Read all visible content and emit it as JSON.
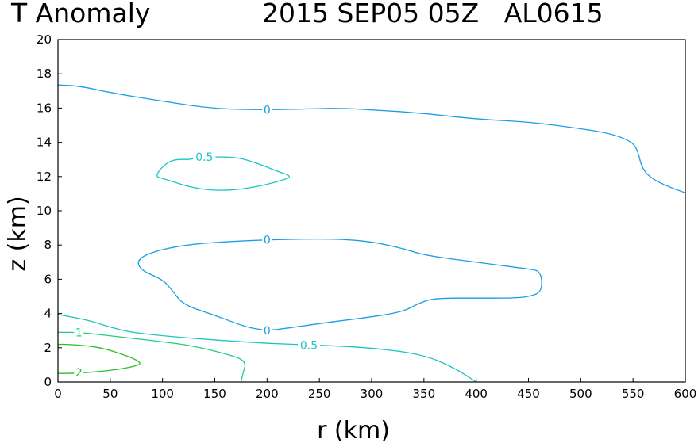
{
  "chart_data": {
    "type": "contour",
    "title_left": "T Anomaly",
    "title_right": "2015 SEP05 05Z   AL0615",
    "xlabel": "r (km)",
    "ylabel": "z (km)",
    "xlim": [
      0,
      600
    ],
    "ylim": [
      0,
      20
    ],
    "xticks": [
      "0",
      "50",
      "100",
      "150",
      "200",
      "250",
      "300",
      "350",
      "400",
      "450",
      "500",
      "550",
      "600"
    ],
    "yticks": [
      "0",
      "2",
      "4",
      "6",
      "8",
      "10",
      "12",
      "14",
      "16",
      "18",
      "20"
    ],
    "grid": false,
    "contours": [
      {
        "level": "0",
        "color": "#1a9ee6",
        "points": [
          [
            0,
            17.35
          ],
          [
            20,
            17.3
          ],
          [
            50,
            16.9
          ],
          [
            100,
            16.4
          ],
          [
            150,
            15.95
          ],
          [
            200,
            15.9
          ],
          [
            240,
            15.95
          ],
          [
            270,
            16.0
          ],
          [
            300,
            15.9
          ],
          [
            350,
            15.7
          ],
          [
            400,
            15.35
          ],
          [
            450,
            15.2
          ],
          [
            500,
            14.8
          ],
          [
            530,
            14.5
          ],
          [
            550,
            14.0
          ],
          [
            555,
            13.4
          ],
          [
            558,
            12.6
          ],
          [
            565,
            12.0
          ],
          [
            580,
            11.5
          ],
          [
            600,
            11.05
          ]
        ],
        "labels": [
          {
            "x": 200,
            "y": 15.9
          }
        ]
      },
      {
        "level": "0",
        "color": "#1a9ee6",
        "points": [
          [
            200,
            8.3
          ],
          [
            230,
            8.35
          ],
          [
            270,
            8.35
          ],
          [
            300,
            8.2
          ],
          [
            330,
            7.8
          ],
          [
            350,
            7.4
          ],
          [
            400,
            7.0
          ],
          [
            450,
            6.6
          ],
          [
            460,
            6.5
          ],
          [
            463,
            6.0
          ],
          [
            462,
            5.3
          ],
          [
            455,
            5.05
          ],
          [
            440,
            4.9
          ],
          [
            400,
            4.9
          ],
          [
            360,
            4.9
          ],
          [
            345,
            4.6
          ],
          [
            330,
            4.1
          ],
          [
            300,
            3.8
          ],
          [
            260,
            3.5
          ],
          [
            220,
            3.15
          ],
          [
            200,
            3.0
          ],
          [
            180,
            3.2
          ],
          [
            150,
            3.9
          ],
          [
            120,
            4.5
          ],
          [
            110,
            5.3
          ],
          [
            100,
            6.0
          ],
          [
            80,
            6.5
          ],
          [
            75,
            7.1
          ],
          [
            90,
            7.6
          ],
          [
            120,
            8.0
          ],
          [
            160,
            8.2
          ],
          [
            200,
            8.3
          ]
        ],
        "labels": [
          {
            "x": 200,
            "y": 8.3
          },
          {
            "x": 200,
            "y": 3.0
          }
        ]
      },
      {
        "level": "0.5",
        "color": "#1cc4c4",
        "points": [
          [
            125,
            13.0
          ],
          [
            140,
            13.15
          ],
          [
            170,
            13.15
          ],
          [
            190,
            12.8
          ],
          [
            210,
            12.3
          ],
          [
            225,
            12.0
          ],
          [
            210,
            11.7
          ],
          [
            190,
            11.4
          ],
          [
            160,
            11.15
          ],
          [
            130,
            11.3
          ],
          [
            100,
            11.9
          ],
          [
            93,
            12.0
          ],
          [
            100,
            12.6
          ],
          [
            110,
            13.0
          ],
          [
            125,
            13.0
          ]
        ],
        "labels": [
          {
            "x": 140,
            "y": 13.15
          }
        ]
      },
      {
        "level": "0.5",
        "color": "#1cc4c4",
        "points": [
          [
            0,
            3.95
          ],
          [
            30,
            3.6
          ],
          [
            50,
            3.2
          ],
          [
            70,
            2.9
          ],
          [
            100,
            2.7
          ],
          [
            150,
            2.45
          ],
          [
            200,
            2.25
          ],
          [
            250,
            2.15
          ],
          [
            300,
            2.0
          ],
          [
            350,
            1.6
          ],
          [
            380,
            0.8
          ],
          [
            400,
            0
          ]
        ],
        "labels": [
          {
            "x": 240,
            "y": 2.15
          }
        ]
      },
      {
        "level": "1",
        "color": "#1ccf7e",
        "points": [
          [
            0,
            2.9
          ],
          [
            20,
            2.9
          ],
          [
            50,
            2.7
          ],
          [
            100,
            2.35
          ],
          [
            130,
            2.1
          ],
          [
            170,
            1.5
          ],
          [
            180,
            1.15
          ],
          [
            177,
            0.5
          ],
          [
            175,
            0
          ]
        ],
        "labels": [
          {
            "x": 20,
            "y": 2.9
          }
        ]
      },
      {
        "level": "2",
        "color": "#2bbd28",
        "points": [
          [
            0,
            0.5
          ],
          [
            10,
            0.5
          ],
          [
            30,
            0.55
          ],
          [
            60,
            0.75
          ],
          [
            75,
            0.95
          ],
          [
            80,
            1.1
          ],
          [
            70,
            1.45
          ],
          [
            40,
            2.05
          ],
          [
            10,
            2.2
          ],
          [
            0,
            2.2
          ]
        ],
        "labels": [
          {
            "x": 20,
            "y": 0.55
          }
        ]
      }
    ]
  }
}
